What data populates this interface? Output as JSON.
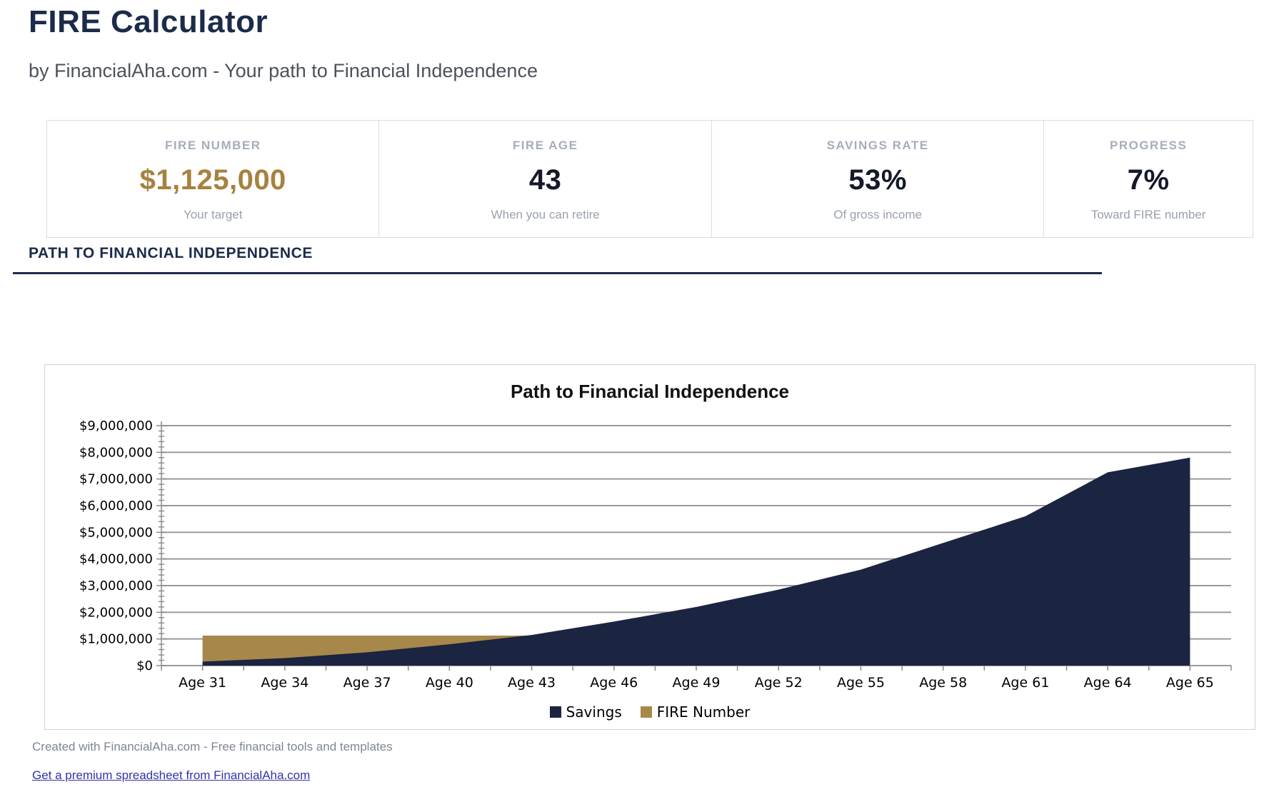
{
  "page": {
    "title": "FIRE Calculator",
    "subtitle": "by FinancialAha.com - Your path to Financial Independence"
  },
  "stats": {
    "cards": [
      {
        "label": "FIRE NUMBER",
        "value": "$1,125,000",
        "sub": "Your target"
      },
      {
        "label": "FIRE AGE",
        "value": "43",
        "sub": "When you can retire"
      },
      {
        "label": "SAVINGS RATE",
        "value": "53%",
        "sub": "Of gross income"
      },
      {
        "label": "PROGRESS",
        "value": "7%",
        "sub": "Toward FIRE number"
      }
    ]
  },
  "section": {
    "heading": "PATH TO FINANCIAL INDEPENDENCE"
  },
  "chart_data": {
    "type": "area",
    "title": "Path to Financial Independence",
    "categories": [
      "Age 31",
      "Age 34",
      "Age 37",
      "Age 40",
      "Age 43",
      "Age 46",
      "Age 49",
      "Age 52",
      "Age 55",
      "Age 58",
      "Age 61",
      "Age 64",
      "Age 65"
    ],
    "series": [
      {
        "name": "Savings",
        "color": "#1b2440",
        "values": [
          150000,
          280000,
          500000,
          800000,
          1150000,
          1650000,
          2200000,
          2850000,
          3600000,
          4600000,
          5600000,
          7250000,
          7800000
        ]
      },
      {
        "name": "FIRE Number",
        "color": "#a7874a",
        "values": [
          1125000,
          1125000,
          1125000,
          1125000,
          1125000,
          1125000,
          1125000,
          1125000,
          1125000,
          1125000,
          1125000,
          1125000,
          1125000
        ]
      }
    ],
    "ylim": [
      0,
      9000000
    ],
    "y_tick_step": 1000000,
    "y_minor_step": 200000,
    "y_tick_prefix": "$",
    "grid": true,
    "legend_position": "bottom"
  },
  "footer": {
    "credit": "Created with FinancialAha.com - Free financial tools and templates",
    "link": "Get a premium spreadsheet from FinancialAha.com"
  },
  "colors": {
    "navy": "#1c2b4a",
    "accent_gold": "#a6823e",
    "link": "#3333aa",
    "gridline": "#9b9b9b",
    "axis": "#8c8c8c"
  }
}
